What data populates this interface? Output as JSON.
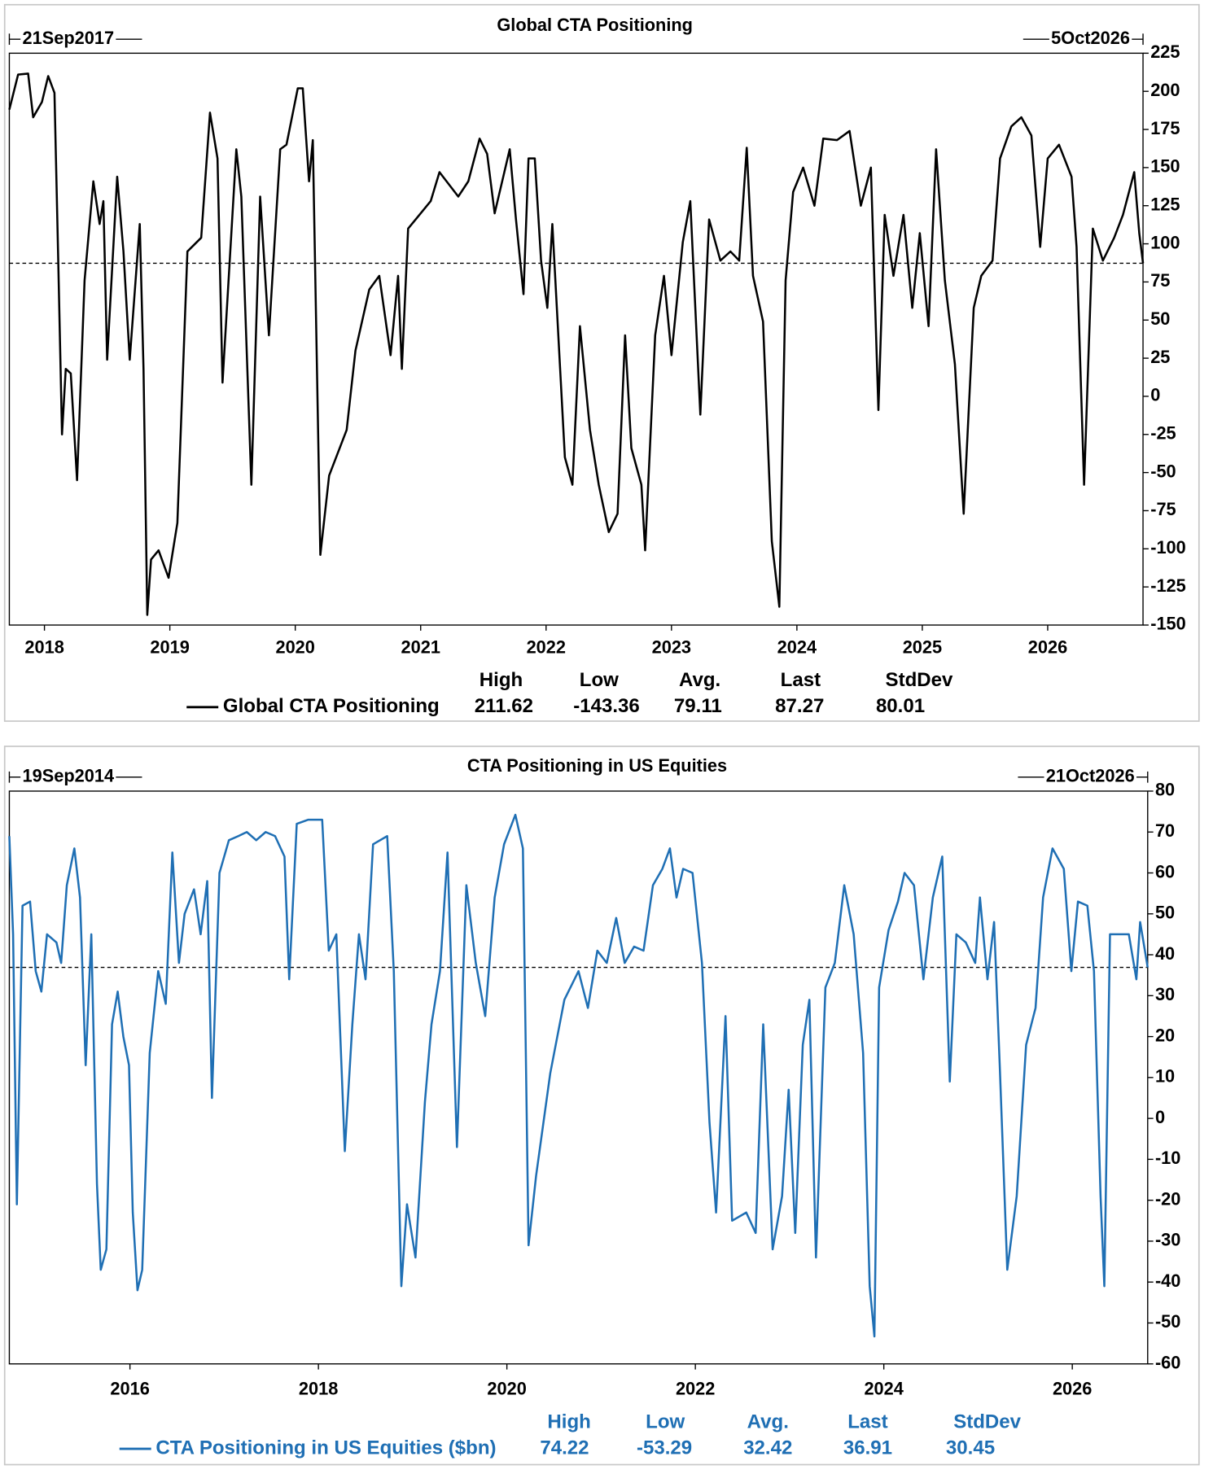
{
  "chart_data": [
    {
      "type": "line",
      "title": "Global CTA Positioning",
      "start_label": "21Sep2017",
      "end_label": "5Oct2026",
      "x": [
        2017.72,
        2017.79,
        2017.87,
        2017.91,
        2017.98,
        2018.03,
        2018.08,
        2018.11,
        2018.14,
        2018.17,
        2018.21,
        2018.26,
        2018.32,
        2018.39,
        2018.44,
        2018.47,
        2018.5,
        2018.58,
        2018.63,
        2018.68,
        2018.76,
        2018.79,
        2018.82,
        2018.85,
        2018.91,
        2018.99,
        2019.06,
        2019.14,
        2019.25,
        2019.32,
        2019.38,
        2019.42,
        2019.53,
        2019.57,
        2019.65,
        2019.72,
        2019.79,
        2019.88,
        2019.93,
        2020.02,
        2020.06,
        2020.11,
        2020.14,
        2020.2,
        2020.27,
        2020.41,
        2020.48,
        2020.59,
        2020.67,
        2020.76,
        2020.82,
        2020.85,
        2020.9,
        2021.08,
        2021.15,
        2021.3,
        2021.38,
        2021.47,
        2021.53,
        2021.59,
        2021.71,
        2021.76,
        2021.82,
        2021.86,
        2021.91,
        2021.96,
        2022.01,
        2022.05,
        2022.11,
        2022.15,
        2022.21,
        2022.27,
        2022.35,
        2022.42,
        2022.5,
        2022.57,
        2022.63,
        2022.68,
        2022.76,
        2022.79,
        2022.87,
        2022.94,
        2023.0,
        2023.09,
        2023.15,
        2023.23,
        2023.3,
        2023.39,
        2023.47,
        2023.54,
        2023.6,
        2023.65,
        2023.73,
        2023.8,
        2023.86,
        2023.91,
        2023.97,
        2024.05,
        2024.14,
        2024.21,
        2024.32,
        2024.42,
        2024.51,
        2024.59,
        2024.65,
        2024.7,
        2024.77,
        2024.85,
        2024.92,
        2024.98,
        2025.05,
        2025.11,
        2025.18,
        2025.26,
        2025.33,
        2025.41,
        2025.47,
        2025.56,
        2025.62,
        2025.71,
        2025.79,
        2025.87,
        2025.94,
        2026.0,
        2026.09,
        2026.19,
        2026.23,
        2026.29,
        2026.36,
        2026.44,
        2026.53,
        2026.6,
        2026.69,
        2026.73,
        2026.76
      ],
      "series": [
        {
          "name": "Global CTA Positioning",
          "color": "#000000",
          "values": [
            188,
            211,
            211.62,
            183,
            193,
            210,
            199,
            89,
            -25,
            18,
            15,
            -55,
            76,
            141,
            113,
            128,
            24,
            144,
            95,
            24,
            113,
            18,
            -143.36,
            -107,
            -101,
            -119,
            -83,
            95,
            104,
            186,
            156,
            9,
            162,
            131,
            -58,
            131,
            40,
            162,
            165,
            202,
            202,
            141,
            168,
            -104,
            -52,
            -22,
            30,
            70,
            79,
            27,
            79,
            18,
            110,
            128,
            147,
            131,
            141,
            169,
            159,
            120,
            162,
            116,
            67,
            156,
            156,
            89,
            58,
            113,
            21,
            -40,
            -58,
            46,
            -22,
            -58,
            -89,
            -77,
            40,
            -34,
            -58,
            -101,
            40,
            79,
            27,
            101,
            128,
            -12,
            116,
            89,
            95,
            89,
            163,
            79,
            49,
            -95,
            -138,
            76,
            134,
            150,
            125,
            169,
            168,
            174,
            125,
            150,
            -9,
            119,
            79,
            119,
            58,
            107,
            46,
            162,
            76,
            21,
            -77,
            58,
            79,
            89,
            156,
            177,
            183,
            171,
            98,
            156,
            165,
            144,
            98,
            -58,
            110,
            89,
            104,
            119,
            147,
            107,
            87.27
          ]
        }
      ],
      "xlim": [
        2017.72,
        2026.76
      ],
      "xticks": [
        2018,
        2019,
        2020,
        2021,
        2022,
        2023,
        2024,
        2025,
        2026
      ],
      "ylim": [
        -150,
        225
      ],
      "yticks": [
        -150,
        -125,
        -100,
        -75,
        -50,
        -25,
        0,
        25,
        50,
        75,
        100,
        125,
        150,
        175,
        200,
        225
      ],
      "stats": {
        "labels": [
          "High",
          "Low",
          "Avg.",
          "Last",
          "StdDev"
        ],
        "values": [
          211.62,
          -143.36,
          79.11,
          87.27,
          80.01
        ]
      }
    },
    {
      "type": "line",
      "title": "CTA Positioning in US Equities",
      "start_label": "19Sep2014",
      "end_label": "21Oct2026",
      "x": [
        2014.72,
        2014.76,
        2014.8,
        2014.86,
        2014.94,
        2015.0,
        2015.06,
        2015.12,
        2015.22,
        2015.27,
        2015.33,
        2015.41,
        2015.47,
        2015.53,
        2015.59,
        2015.65,
        2015.69,
        2015.75,
        2015.81,
        2015.87,
        2015.93,
        2015.99,
        2016.03,
        2016.08,
        2016.13,
        2016.21,
        2016.3,
        2016.38,
        2016.45,
        2016.52,
        2016.58,
        2016.68,
        2016.75,
        2016.82,
        2016.87,
        2016.95,
        2017.05,
        2017.15,
        2017.24,
        2017.34,
        2017.44,
        2017.54,
        2017.64,
        2017.69,
        2017.77,
        2017.89,
        2018.04,
        2018.11,
        2018.19,
        2018.28,
        2018.36,
        2018.43,
        2018.5,
        2018.58,
        2018.73,
        2018.8,
        2018.88,
        2018.94,
        2019.03,
        2019.13,
        2019.2,
        2019.29,
        2019.37,
        2019.47,
        2019.57,
        2019.67,
        2019.77,
        2019.87,
        2019.97,
        2020.09,
        2020.17,
        2020.23,
        2020.31,
        2020.46,
        2020.61,
        2020.76,
        2020.86,
        2020.96,
        2021.06,
        2021.16,
        2021.25,
        2021.35,
        2021.45,
        2021.55,
        2021.65,
        2021.73,
        2021.8,
        2021.87,
        2021.97,
        2022.07,
        2022.15,
        2022.22,
        2022.32,
        2022.39,
        2022.54,
        2022.64,
        2022.72,
        2022.82,
        2022.92,
        2022.99,
        2023.06,
        2023.14,
        2023.21,
        2023.28,
        2023.38,
        2023.48,
        2023.58,
        2023.68,
        2023.78,
        2023.85,
        2023.9,
        2023.95,
        2024.05,
        2024.15,
        2024.22,
        2024.32,
        2024.42,
        2024.52,
        2024.62,
        2024.7,
        2024.77,
        2024.87,
        2024.97,
        2025.02,
        2025.1,
        2025.17,
        2025.23,
        2025.31,
        2025.41,
        2025.51,
        2025.61,
        2025.69,
        2025.79,
        2025.91,
        2025.99,
        2026.06,
        2026.16,
        2026.23,
        2026.3,
        2026.34,
        2026.4,
        2026.5,
        2026.6,
        2026.68,
        2026.72,
        2026.8
      ],
      "series": [
        {
          "name": "CTA Positioning in US Equities ($bn)",
          "color": "#1f6fb4",
          "values": [
            69,
            45,
            -21,
            52,
            53,
            36,
            31,
            45,
            43,
            38,
            57,
            66,
            54,
            13,
            45,
            -16,
            -37,
            -32,
            23,
            31,
            20,
            13,
            -23,
            -42,
            -37,
            16,
            36,
            28,
            65,
            38,
            50,
            56,
            45,
            58,
            5,
            60,
            68,
            69,
            70,
            68,
            70,
            69,
            64,
            34,
            72,
            73,
            73,
            41,
            45,
            -8,
            23,
            45,
            34,
            67,
            69,
            36,
            -41,
            -21,
            -34,
            4,
            23,
            36,
            65,
            -7,
            57,
            38,
            25,
            54,
            67,
            74.22,
            66,
            -31,
            -14,
            11,
            29,
            36,
            27,
            41,
            38,
            49,
            38,
            42,
            41,
            57,
            61,
            66,
            54,
            61,
            60,
            38,
            -1,
            -23,
            25,
            -25,
            -23,
            -28,
            23,
            -32,
            -19,
            7,
            -28,
            18,
            29,
            -34,
            32,
            38,
            57,
            45,
            16,
            -41,
            -53.29,
            32,
            46,
            53,
            60,
            57,
            34,
            54,
            64,
            9,
            45,
            43,
            38,
            54,
            34,
            48,
            13,
            -37,
            -19,
            18,
            27,
            54,
            66,
            61,
            36,
            53,
            52,
            36,
            -19,
            -41,
            45,
            45,
            45,
            34,
            48,
            36.91
          ]
        }
      ],
      "xlim": [
        2014.72,
        2026.8
      ],
      "xticks": [
        2016,
        2018,
        2020,
        2022,
        2024,
        2026
      ],
      "ylim": [
        -60,
        80
      ],
      "yticks": [
        -60,
        -50,
        -40,
        -30,
        -20,
        -10,
        0,
        10,
        20,
        30,
        40,
        50,
        60,
        70,
        80
      ],
      "stats": {
        "labels": [
          "High",
          "Low",
          "Avg.",
          "Last",
          "StdDev"
        ],
        "values": [
          74.22,
          -53.29,
          32.42,
          36.91,
          30.45
        ]
      }
    }
  ]
}
